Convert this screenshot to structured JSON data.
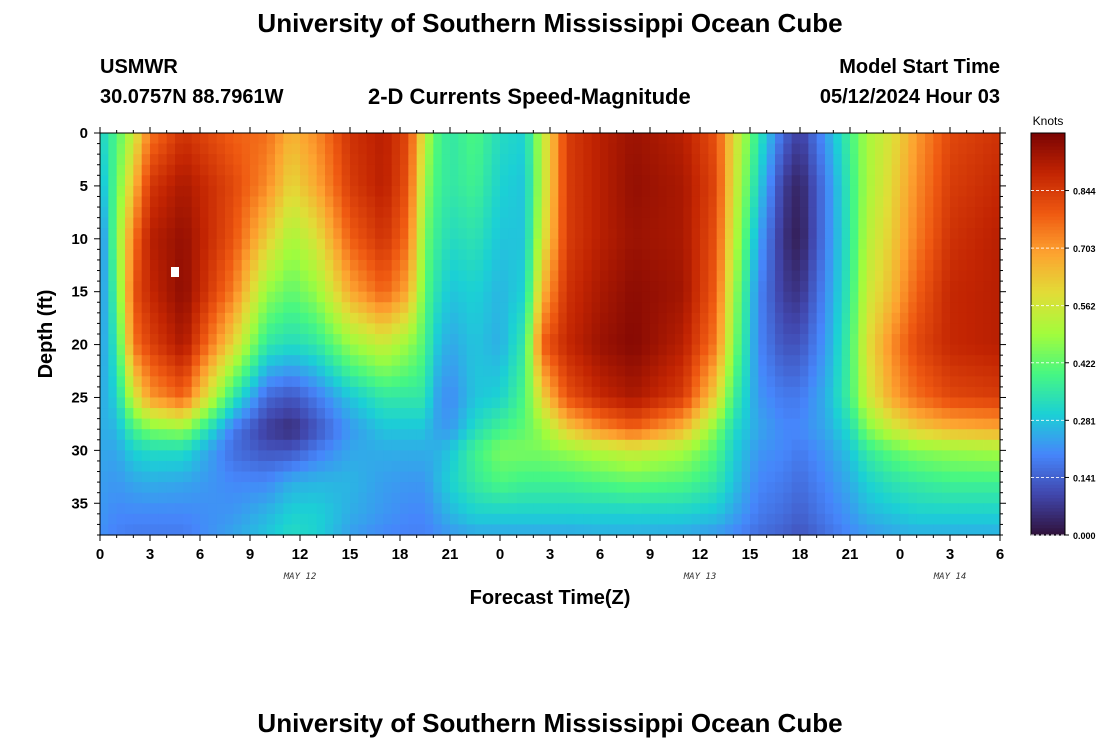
{
  "page": {
    "title": "University of Southern Mississippi Ocean Cube",
    "station": "USMWR",
    "coords": "30.0757N  88.7961W",
    "subtitle": "2-D Currents Speed-Magnitude",
    "model_start_label": "Model Start Time",
    "model_start_value": "05/12/2024 Hour 03",
    "footer_title": "University of Southern Mississippi Ocean Cube"
  },
  "chart_data": {
    "type": "heatmap",
    "xlabel": "Forecast Time(Z)",
    "ylabel": "Depth (ft)",
    "x_tick_labels": [
      "0",
      "3",
      "6",
      "9",
      "12",
      "15",
      "18",
      "21",
      "0",
      "3",
      "6",
      "9",
      "12",
      "15",
      "18",
      "21",
      "0",
      "3",
      "6"
    ],
    "x_range_hours": [
      0,
      54
    ],
    "date_labels": [
      {
        "label": "MAY 12",
        "hour": 12
      },
      {
        "label": "MAY 13",
        "hour": 36
      },
      {
        "label": "MAY 14",
        "hour": 51
      }
    ],
    "y_tick_labels": [
      "0",
      "5",
      "10",
      "15",
      "20",
      "25",
      "30",
      "35"
    ],
    "ylim": [
      0,
      38
    ],
    "colorbar": {
      "unit": "Knots",
      "range": [
        0.0,
        0.985
      ],
      "tick_labels": [
        "0.000",
        "0.141",
        "0.281",
        "0.422",
        "0.562",
        "0.703",
        "0.844"
      ]
    },
    "profile_hours": [
      0,
      1,
      2,
      3,
      5,
      8,
      10,
      11.5,
      13,
      15,
      17,
      18.5,
      19.5,
      20,
      21,
      22.5,
      24,
      25.5,
      26.5,
      28,
      30,
      32,
      35,
      37,
      38,
      39.5,
      41,
      42,
      43.5,
      45,
      46,
      47.5,
      49,
      51,
      54
    ],
    "profile_depths_ft": [
      0,
      5,
      10,
      15,
      20,
      25,
      28,
      30,
      33,
      36,
      38
    ],
    "speed_profiles_knots": [
      [
        0.3,
        0.25,
        0.18,
        0.2,
        0.22,
        0.24,
        0.25,
        0.24,
        0.23,
        0.22,
        0.21
      ],
      [
        0.4,
        0.42,
        0.45,
        0.4,
        0.35,
        0.3,
        0.26,
        0.24,
        0.22,
        0.2,
        0.19
      ],
      [
        0.55,
        0.65,
        0.75,
        0.8,
        0.75,
        0.55,
        0.38,
        0.3,
        0.24,
        0.2,
        0.18
      ],
      [
        0.75,
        0.85,
        0.9,
        0.88,
        0.83,
        0.7,
        0.45,
        0.32,
        0.25,
        0.2,
        0.18
      ],
      [
        0.86,
        0.92,
        0.95,
        0.96,
        0.92,
        0.78,
        0.48,
        0.32,
        0.24,
        0.2,
        0.18
      ],
      [
        0.78,
        0.82,
        0.8,
        0.74,
        0.6,
        0.35,
        0.18,
        0.16,
        0.2,
        0.22,
        0.24
      ],
      [
        0.76,
        0.72,
        0.62,
        0.48,
        0.35,
        0.15,
        0.08,
        0.12,
        0.2,
        0.26,
        0.28
      ],
      [
        0.66,
        0.6,
        0.5,
        0.42,
        0.32,
        0.12,
        0.05,
        0.12,
        0.25,
        0.3,
        0.32
      ],
      [
        0.72,
        0.68,
        0.58,
        0.48,
        0.35,
        0.18,
        0.12,
        0.18,
        0.26,
        0.3,
        0.3
      ],
      [
        0.86,
        0.84,
        0.78,
        0.68,
        0.48,
        0.28,
        0.22,
        0.24,
        0.26,
        0.25,
        0.23
      ],
      [
        0.9,
        0.9,
        0.86,
        0.78,
        0.55,
        0.35,
        0.28,
        0.25,
        0.23,
        0.22,
        0.2
      ],
      [
        0.82,
        0.8,
        0.76,
        0.68,
        0.48,
        0.35,
        0.28,
        0.25,
        0.22,
        0.2,
        0.19
      ],
      [
        0.55,
        0.5,
        0.45,
        0.42,
        0.4,
        0.35,
        0.28,
        0.25,
        0.22,
        0.2,
        0.19
      ],
      [
        0.42,
        0.4,
        0.38,
        0.35,
        0.3,
        0.25,
        0.24,
        0.25,
        0.25,
        0.22,
        0.2
      ],
      [
        0.35,
        0.35,
        0.32,
        0.28,
        0.24,
        0.2,
        0.22,
        0.28,
        0.3,
        0.26,
        0.22
      ],
      [
        0.4,
        0.38,
        0.34,
        0.3,
        0.28,
        0.28,
        0.32,
        0.38,
        0.36,
        0.3,
        0.24
      ],
      [
        0.32,
        0.3,
        0.28,
        0.26,
        0.25,
        0.3,
        0.38,
        0.45,
        0.4,
        0.3,
        0.24
      ],
      [
        0.3,
        0.28,
        0.28,
        0.3,
        0.36,
        0.4,
        0.42,
        0.45,
        0.38,
        0.3,
        0.24
      ],
      [
        0.52,
        0.52,
        0.55,
        0.65,
        0.78,
        0.6,
        0.48,
        0.45,
        0.38,
        0.3,
        0.24
      ],
      [
        0.84,
        0.84,
        0.84,
        0.86,
        0.88,
        0.8,
        0.62,
        0.48,
        0.38,
        0.3,
        0.24
      ],
      [
        0.9,
        0.9,
        0.9,
        0.92,
        0.94,
        0.88,
        0.72,
        0.52,
        0.4,
        0.3,
        0.25
      ],
      [
        0.94,
        0.95,
        0.94,
        0.96,
        0.97,
        0.92,
        0.78,
        0.56,
        0.42,
        0.3,
        0.25
      ],
      [
        0.9,
        0.92,
        0.92,
        0.93,
        0.9,
        0.84,
        0.66,
        0.5,
        0.4,
        0.3,
        0.24
      ],
      [
        0.8,
        0.82,
        0.8,
        0.78,
        0.74,
        0.6,
        0.45,
        0.4,
        0.35,
        0.28,
        0.22
      ],
      [
        0.6,
        0.58,
        0.55,
        0.5,
        0.46,
        0.38,
        0.32,
        0.3,
        0.28,
        0.24,
        0.2
      ],
      [
        0.35,
        0.3,
        0.24,
        0.2,
        0.2,
        0.22,
        0.24,
        0.22,
        0.2,
        0.18,
        0.16
      ],
      [
        0.15,
        0.08,
        0.06,
        0.08,
        0.12,
        0.18,
        0.2,
        0.2,
        0.18,
        0.16,
        0.14
      ],
      [
        0.08,
        0.03,
        0.02,
        0.06,
        0.12,
        0.18,
        0.2,
        0.18,
        0.16,
        0.14,
        0.12
      ],
      [
        0.22,
        0.18,
        0.18,
        0.2,
        0.22,
        0.25,
        0.24,
        0.22,
        0.2,
        0.18,
        0.16
      ],
      [
        0.38,
        0.36,
        0.35,
        0.36,
        0.38,
        0.38,
        0.32,
        0.28,
        0.25,
        0.22,
        0.2
      ],
      [
        0.5,
        0.5,
        0.52,
        0.55,
        0.58,
        0.55,
        0.45,
        0.36,
        0.3,
        0.26,
        0.22
      ],
      [
        0.58,
        0.6,
        0.62,
        0.65,
        0.72,
        0.68,
        0.55,
        0.42,
        0.34,
        0.28,
        0.24
      ],
      [
        0.7,
        0.72,
        0.74,
        0.78,
        0.82,
        0.76,
        0.62,
        0.46,
        0.36,
        0.3,
        0.25
      ],
      [
        0.82,
        0.84,
        0.86,
        0.88,
        0.88,
        0.82,
        0.66,
        0.48,
        0.38,
        0.3,
        0.25
      ],
      [
        0.86,
        0.88,
        0.9,
        0.9,
        0.9,
        0.84,
        0.68,
        0.5,
        0.38,
        0.3,
        0.25
      ]
    ],
    "colormap_stops": [
      "#30123b",
      "#4146ac",
      "#4686fb",
      "#1bd0d5",
      "#46f783",
      "#a2fc3c",
      "#e1dd37",
      "#fda330",
      "#ef5911",
      "#c22402",
      "#7a0403"
    ]
  }
}
